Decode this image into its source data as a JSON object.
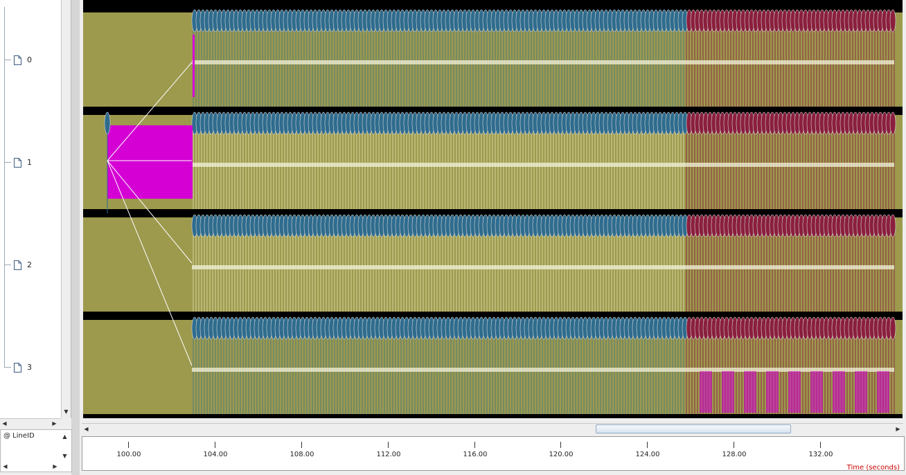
{
  "tree": {
    "items": [
      {
        "label": "0"
      },
      {
        "label": "1"
      },
      {
        "label": "2"
      },
      {
        "label": "3"
      }
    ]
  },
  "attributes": {
    "label": "@ LineID"
  },
  "timeline": {
    "ticks": [
      "100.00",
      "104.00",
      "108.00",
      "112.00",
      "116.00",
      "120.00",
      "124.00",
      "128.00",
      "132.00"
    ],
    "title": "Time (seconds)"
  },
  "colors": {
    "background": "#9d9a4e",
    "blue_state": "#2f6c8e",
    "red_state": "#8a1f3d",
    "magenta_state": "#d400d4",
    "separator": "#000000"
  },
  "icons": {
    "tree_item": "document-icon",
    "scroll_up": "up-arrow-icon",
    "scroll_down": "down-arrow-icon",
    "scroll_left": "left-arrow-icon",
    "scroll_right": "right-arrow-icon"
  }
}
